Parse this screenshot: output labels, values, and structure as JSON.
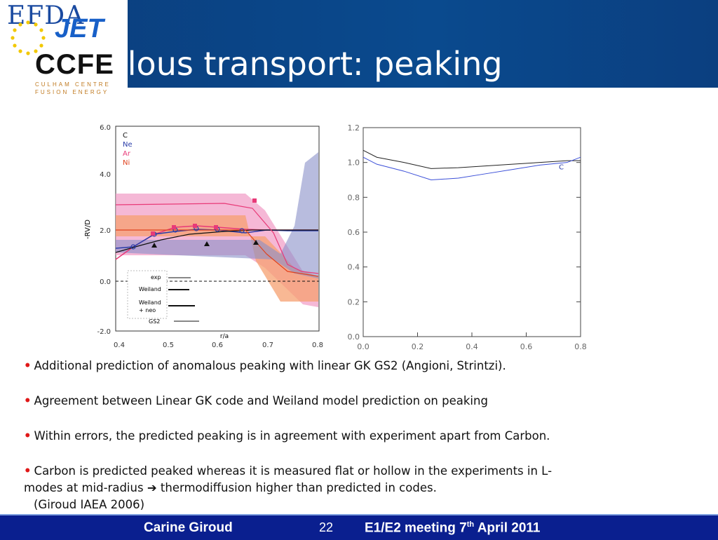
{
  "header": {
    "title": "Anomalous transport: peaking",
    "logos": {
      "efda": "EFDA",
      "jet": "JET",
      "ccfe": "CCFE",
      "ccfe_line1": "CULHAM CENTRE",
      "ccfe_line2": "FUSION ENERGY"
    }
  },
  "left_plot": {
    "ylabel": "-RV/D",
    "xlabel": "r/a",
    "yticks": [
      "6.0",
      "4.0",
      "2.0",
      "0.0",
      "-2.0"
    ],
    "xticks": [
      "0.4",
      "0.5",
      "0.6",
      "0.7",
      "0.8"
    ],
    "species": [
      {
        "label": "C",
        "color": "#111111"
      },
      {
        "label": "Ne",
        "color": "#2a3ca8"
      },
      {
        "label": "Ar",
        "color": "#e83a78"
      },
      {
        "label": "Ni",
        "color": "#e0421e"
      }
    ],
    "legend": {
      "exp": "exp",
      "weiland": "Weiland",
      "weiland_neo_1": "Weiland",
      "weiland_neo_2": "+ neo",
      "gs2": "GS2"
    }
  },
  "chart_data": {
    "type": "line",
    "x": [
      0.0,
      0.05,
      0.15,
      0.25,
      0.35,
      0.45,
      0.55,
      0.65,
      0.75,
      0.8
    ],
    "series": [
      {
        "values": [
          1.07,
          1.03,
          1.0,
          0.965,
          0.97,
          0.98,
          0.99,
          1.0,
          1.01,
          1.01
        ]
      },
      {
        "values": [
          1.03,
          0.99,
          0.95,
          0.9,
          0.91,
          0.935,
          0.96,
          0.985,
          1.0,
          1.03
        ]
      }
    ],
    "annotations": [
      "C"
    ],
    "xticks": [
      "0.0",
      "0.2",
      "0.4",
      "0.6",
      "0.8"
    ],
    "yticks": [
      "0.0",
      "0.2",
      "0.4",
      "0.6",
      "0.8",
      "1.0",
      "1.2"
    ],
    "xlim": [
      0.0,
      0.8
    ],
    "ylim": [
      0.0,
      1.2
    ]
  },
  "bullets": [
    "Additional prediction of anomalous peaking with linear GK GS2 (Angioni, Strintzi).",
    "Agreement between Linear GK code and Weiland model prediction on peaking",
    "Within errors, the predicted peaking is in agreement with experiment apart from Carbon."
  ],
  "bullet4": {
    "line1": "Carbon is predicted peaked whereas it is measured flat or hollow in the experiments in L-",
    "line2a": "modes at mid-radius",
    "arrow": "➔",
    "line2b": "thermodiffusion higher than predicted in codes.",
    "ref": "(Giroud IAEA 2006)"
  },
  "footer": {
    "author": "Carine Giroud",
    "page": "22",
    "meeting_pre": "E1/E2 meeting 7",
    "meeting_sup": "th",
    "meeting_post": " April 2011"
  }
}
